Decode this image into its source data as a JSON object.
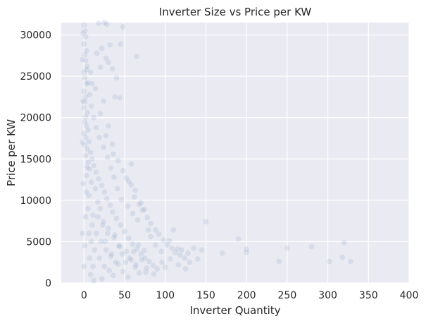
{
  "chart_data": {
    "type": "scatter",
    "title": "Inverter Size vs Price per KW",
    "xlabel": "Inverter Quantity",
    "ylabel": "Price per KW",
    "xlim": [
      -28,
      400
    ],
    "ylim": [
      0,
      31500
    ],
    "xticks": [
      "0",
      "50",
      "100",
      "150",
      "200",
      "250",
      "300",
      "350",
      "400"
    ],
    "yticks": [
      "0",
      "5000",
      "10000",
      "15000",
      "20000",
      "25000",
      "30000"
    ],
    "grid": true,
    "style": {
      "background": "#eaeaf2",
      "grid_color": "#ffffff",
      "point_color": "#4c72b0",
      "point_alpha": 0.12
    },
    "series": [
      {
        "points": [
          [
            0,
            31200
          ],
          [
            1,
            30500
          ],
          [
            2,
            29800
          ],
          [
            0,
            28900
          ],
          [
            3,
            28100
          ],
          [
            1,
            27600
          ],
          [
            2,
            26900
          ],
          [
            4,
            26200
          ],
          [
            0,
            25500
          ],
          [
            1,
            24800
          ],
          [
            3,
            24100
          ],
          [
            0,
            23200
          ],
          [
            2,
            22500
          ],
          [
            1,
            21900
          ],
          [
            0,
            21200
          ],
          [
            4,
            20600
          ],
          [
            2,
            20100
          ],
          [
            1,
            19500
          ],
          [
            3,
            19000
          ],
          [
            5,
            18500
          ],
          [
            0,
            18100
          ],
          [
            2,
            17600
          ],
          [
            6,
            17100
          ],
          [
            1,
            16700
          ],
          [
            4,
            16200
          ],
          [
            8,
            15800
          ],
          [
            2,
            15400
          ],
          [
            10,
            15000
          ],
          [
            5,
            14600
          ],
          [
            12,
            14200
          ],
          [
            7,
            13800
          ],
          [
            15,
            13400
          ],
          [
            3,
            13000
          ],
          [
            18,
            12600
          ],
          [
            9,
            12200
          ],
          [
            22,
            11800
          ],
          [
            14,
            11400
          ],
          [
            25,
            11000
          ],
          [
            6,
            10600
          ],
          [
            28,
            10200
          ],
          [
            17,
            9800
          ],
          [
            32,
            9400
          ],
          [
            20,
            9000
          ],
          [
            35,
            8600
          ],
          [
            11,
            8200
          ],
          [
            40,
            7800
          ],
          [
            24,
            7400
          ],
          [
            45,
            7000
          ],
          [
            30,
            6600
          ],
          [
            50,
            6200
          ],
          [
            38,
            5800
          ],
          [
            55,
            5400
          ],
          [
            26,
            5000
          ],
          [
            60,
            4700
          ],
          [
            44,
            4400
          ],
          [
            65,
            4100
          ],
          [
            52,
            3800
          ],
          [
            70,
            3500
          ],
          [
            33,
            3200
          ],
          [
            75,
            3000
          ],
          [
            58,
            2800
          ],
          [
            80,
            2600
          ],
          [
            42,
            2300
          ],
          [
            85,
            2100
          ],
          [
            63,
            1900
          ],
          [
            90,
            1700
          ],
          [
            48,
            1400
          ],
          [
            68,
            1200
          ],
          [
            36,
            900
          ],
          [
            54,
            700
          ],
          [
            22,
            500
          ],
          [
            12,
            300
          ],
          [
            16,
            27800
          ],
          [
            22,
            28400
          ],
          [
            27,
            27200
          ],
          [
            30,
            26700
          ],
          [
            35,
            25900
          ],
          [
            20,
            26100
          ],
          [
            40,
            24800
          ],
          [
            38,
            22500
          ],
          [
            44,
            22400
          ],
          [
            10,
            24100
          ],
          [
            65,
            27400
          ],
          [
            45,
            28900
          ],
          [
            25,
            31500
          ],
          [
            28,
            31300
          ],
          [
            48,
            31000
          ],
          [
            18,
            31400
          ],
          [
            32,
            28800
          ],
          [
            8,
            25500
          ],
          [
            14,
            23500
          ],
          [
            24,
            22000
          ],
          [
            20,
            20500
          ],
          [
            30,
            19000
          ],
          [
            27,
            17800
          ],
          [
            35,
            16800
          ],
          [
            36,
            15600
          ],
          [
            42,
            14800
          ],
          [
            48,
            13600
          ],
          [
            52,
            12700
          ],
          [
            58,
            11900
          ],
          [
            62,
            10400
          ],
          [
            68,
            9500
          ],
          [
            72,
            8800
          ],
          [
            78,
            7900
          ],
          [
            82,
            7200
          ],
          [
            88,
            6400
          ],
          [
            92,
            5900
          ],
          [
            98,
            5200
          ],
          [
            102,
            4600
          ],
          [
            108,
            4200
          ],
          [
            112,
            3700
          ],
          [
            118,
            3400
          ],
          [
            124,
            3000
          ],
          [
            58,
            14400
          ],
          [
            55,
            12300
          ],
          [
            63,
            11200
          ],
          [
            70,
            9700
          ],
          [
            74,
            8900
          ],
          [
            110,
            6400
          ],
          [
            105,
            5100
          ],
          [
            115,
            4100
          ],
          [
            120,
            4000
          ],
          [
            128,
            3600
          ],
          [
            135,
            4200
          ],
          [
            145,
            4000
          ],
          [
            150,
            7400
          ],
          [
            170,
            3600
          ],
          [
            190,
            5300
          ],
          [
            200,
            4100
          ],
          [
            200,
            3700
          ],
          [
            240,
            2600
          ],
          [
            250,
            4200
          ],
          [
            280,
            4400
          ],
          [
            302,
            2600
          ],
          [
            318,
            3100
          ],
          [
            320,
            4900
          ],
          [
            328,
            2600
          ],
          [
            140,
            2900
          ],
          [
            130,
            2500
          ],
          [
            125,
            1700
          ],
          [
            116,
            2200
          ],
          [
            106,
            2900
          ],
          [
            96,
            2500
          ],
          [
            100,
            1900
          ],
          [
            86,
            1100
          ],
          [
            76,
            1300
          ],
          [
            95,
            3800
          ],
          [
            88,
            4600
          ],
          [
            82,
            5600
          ],
          [
            79,
            6400
          ],
          [
            66,
            7600
          ],
          [
            60,
            8400
          ],
          [
            54,
            9300
          ],
          [
            46,
            10100
          ],
          [
            41,
            11400
          ],
          [
            37,
            12800
          ],
          [
            33,
            13900
          ],
          [
            29,
            15200
          ],
          [
            24,
            16400
          ],
          [
            19,
            17600
          ],
          [
            15,
            18800
          ],
          [
            12,
            20000
          ],
          [
            9,
            21400
          ],
          [
            7,
            22800
          ],
          [
            5,
            24200
          ],
          [
            3,
            25800
          ],
          [
            -1,
            30200
          ],
          [
            -2,
            27000
          ],
          [
            -1,
            22000
          ],
          [
            -2,
            17000
          ],
          [
            -1,
            12000
          ],
          [
            -2,
            6000
          ],
          [
            0,
            2000
          ],
          [
            1,
            4500
          ],
          [
            2,
            8000
          ],
          [
            3,
            11000
          ],
          [
            4,
            14000
          ],
          [
            5,
            9000
          ],
          [
            6,
            6000
          ],
          [
            7,
            3000
          ],
          [
            8,
            1000
          ],
          [
            9,
            5000
          ],
          [
            10,
            7000
          ],
          [
            11,
            2000
          ],
          [
            13,
            4000
          ],
          [
            15,
            6000
          ],
          [
            17,
            8000
          ],
          [
            19,
            3000
          ],
          [
            21,
            5000
          ],
          [
            23,
            7000
          ],
          [
            25,
            2000
          ],
          [
            27,
            4000
          ],
          [
            29,
            6000
          ],
          [
            31,
            1500
          ],
          [
            34,
            3500
          ],
          [
            37,
            5500
          ],
          [
            39,
            2500
          ],
          [
            43,
            4500
          ],
          [
            47,
            3500
          ],
          [
            51,
            2500
          ],
          [
            56,
            3000
          ],
          [
            61,
            3800
          ],
          [
            64,
            2200
          ],
          [
            67,
            4600
          ],
          [
            71,
            2800
          ],
          [
            74,
            3900
          ],
          [
            77,
            1800
          ]
        ]
      }
    ]
  }
}
